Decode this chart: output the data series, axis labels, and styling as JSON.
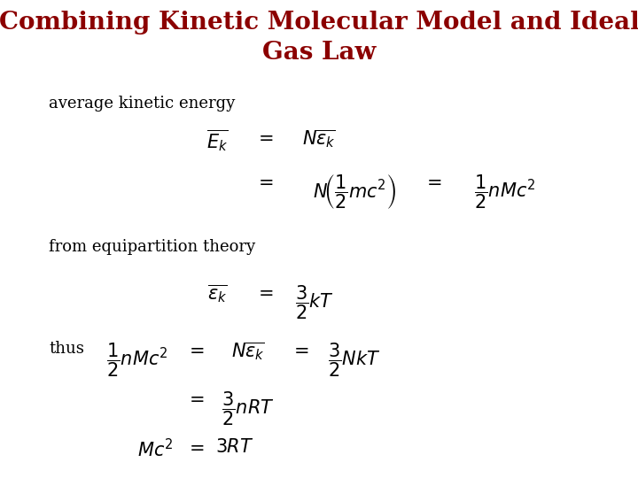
{
  "title_line1": "Combining Kinetic Molecular Model and Ideal",
  "title_line2": "Gas Law",
  "title_color": "#8B0000",
  "title_fontsize": 20,
  "bg_color": "#FFFFFF",
  "label_avg": "average kinetic energy",
  "label_equip": "from equipartition theory",
  "label_thus": "thus",
  "text_fontsize": 13,
  "eq_fontsize": 15
}
